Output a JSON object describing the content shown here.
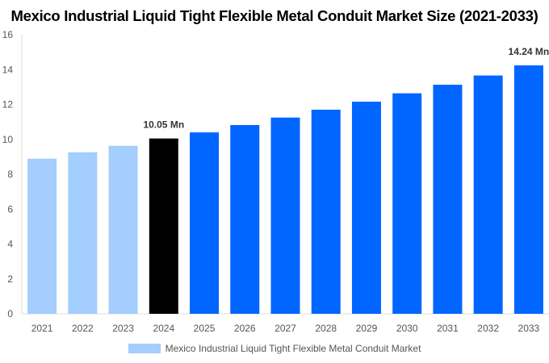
{
  "chart_data": {
    "type": "bar",
    "title": "Mexico Industrial Liquid Tight Flexible Metal Conduit Market Size (2021-2033)",
    "categories": [
      "2021",
      "2022",
      "2023",
      "2024",
      "2025",
      "2026",
      "2027",
      "2028",
      "2029",
      "2030",
      "2031",
      "2032",
      "2033"
    ],
    "series": [
      {
        "name": "Mexico Industrial Liquid Tight Flexible Metal Conduit Market",
        "values": [
          8.89,
          9.26,
          9.63,
          10.05,
          10.4,
          10.82,
          11.25,
          11.7,
          12.16,
          12.64,
          13.13,
          13.66,
          14.24
        ]
      }
    ],
    "bar_colors": {
      "historical": "#a3cefe",
      "base_year": "#000000",
      "forecast": "#0066ff"
    },
    "color_groups": [
      "historical",
      "historical",
      "historical",
      "base_year",
      "forecast",
      "forecast",
      "forecast",
      "forecast",
      "forecast",
      "forecast",
      "forecast",
      "forecast",
      "forecast"
    ],
    "data_labels": [
      {
        "category": "2024",
        "text": "10.05 Mn"
      },
      {
        "category": "2033",
        "text": "14.24 Mn"
      }
    ],
    "yticks": [
      0,
      2,
      4,
      6,
      8,
      10,
      12,
      14,
      16
    ],
    "ylim": [
      0,
      16
    ],
    "xlabel": "",
    "ylabel": "",
    "grid": false,
    "legend": "bottom"
  }
}
